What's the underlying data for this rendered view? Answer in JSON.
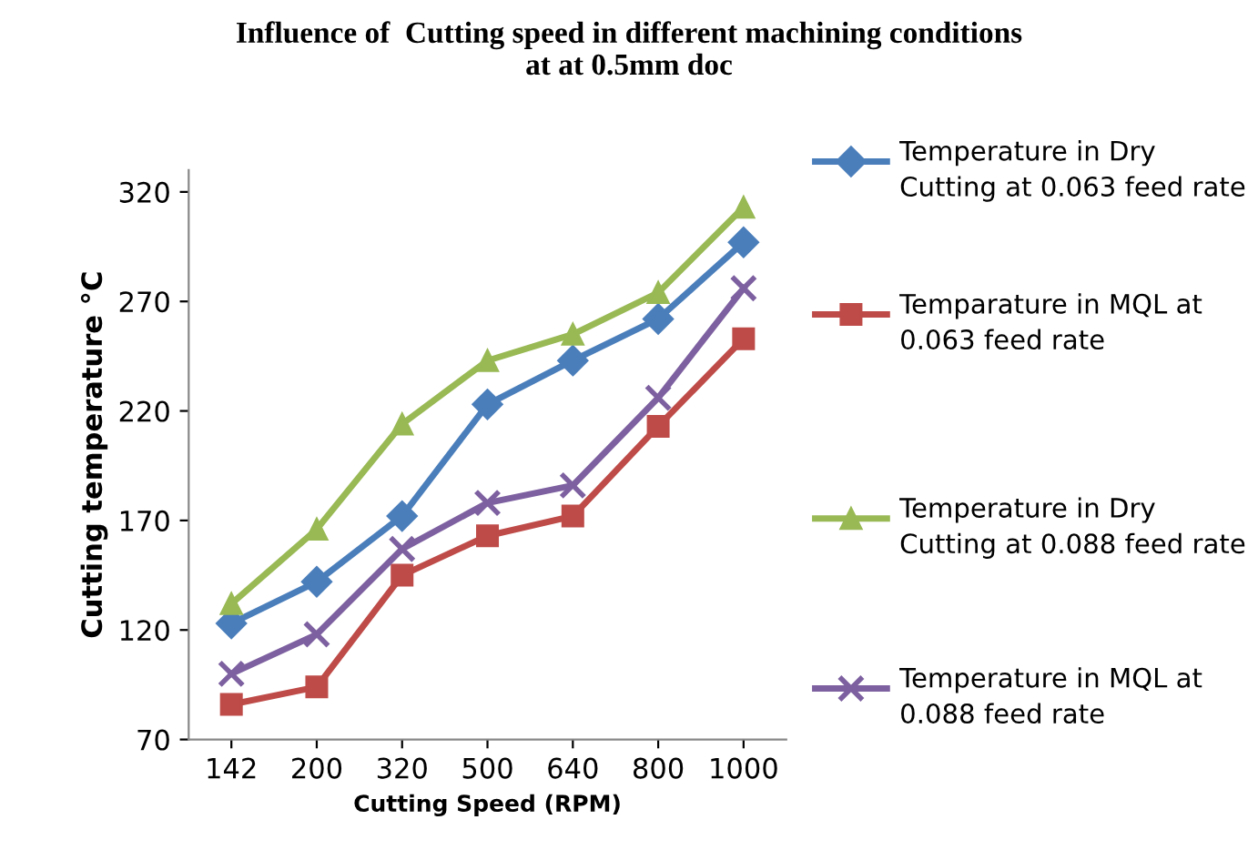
{
  "chart_data": {
    "type": "line",
    "title": "Influence of  Cutting speed in different machining conditions\nat at 0.5mm doc",
    "xlabel": "Cutting Speed (RPM)",
    "ylabel": "Cutting temperature °C",
    "categories": [
      "142",
      "200",
      "320",
      "500",
      "640",
      "800",
      "1000"
    ],
    "series": [
      {
        "name": "Temperature in Dry Cutting at 0.063 feed rate",
        "color": "#4a7ebb",
        "marker": "diamond",
        "values": [
          123,
          142,
          172,
          223,
          243,
          262,
          297
        ]
      },
      {
        "name": "Temparature in MQL at 0.063 feed rate",
        "color": "#be4b48",
        "marker": "square",
        "values": [
          86,
          94,
          145,
          163,
          172,
          213,
          253
        ]
      },
      {
        "name": "Temperature in Dry Cutting at 0.088 feed rate",
        "color": "#98b954",
        "marker": "triangle",
        "values": [
          132,
          166,
          214,
          243,
          255,
          274,
          313
        ]
      },
      {
        "name": "Temperature in MQL at 0.088 feed rate",
        "color": "#7d60a0",
        "marker": "cross",
        "values": [
          100,
          118,
          157,
          178,
          186,
          226,
          276
        ]
      }
    ],
    "ylim": [
      70,
      330
    ],
    "yticks": [
      70,
      120,
      170,
      220,
      270,
      320
    ],
    "grid": false,
    "legend": "right"
  }
}
